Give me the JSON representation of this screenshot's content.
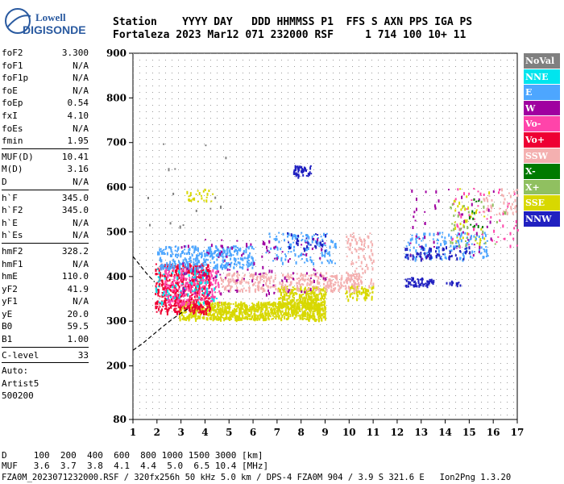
{
  "logo": {
    "line1": "Lowell",
    "line2": "DIGISONDE"
  },
  "header": {
    "line1": "Station    YYYY DAY   DDD HHMMSS P1  FFS S AXN PPS IGA PS",
    "line2": "Fortaleza 2023 Mar12 071 232000 RSF     1 714 100 10+ 11"
  },
  "params": {
    "group1": [
      {
        "k": "foF2",
        "v": "3.300"
      },
      {
        "k": "foF1",
        "v": "N/A"
      },
      {
        "k": "foF1p",
        "v": "N/A"
      },
      {
        "k": "foE",
        "v": "N/A"
      },
      {
        "k": "foEp",
        "v": "0.54"
      },
      {
        "k": "fxI",
        "v": "4.10"
      },
      {
        "k": "foEs",
        "v": "N/A"
      },
      {
        "k": "fmin",
        "v": "1.95"
      }
    ],
    "group2": [
      {
        "k": "MUF(D)",
        "v": "10.41"
      },
      {
        "k": "M(D)",
        "v": "3.16"
      },
      {
        "k": "D",
        "v": "N/A"
      }
    ],
    "group3": [
      {
        "k": "h`F",
        "v": "345.0"
      },
      {
        "k": "h`F2",
        "v": "345.0"
      },
      {
        "k": "h`E",
        "v": "N/A"
      },
      {
        "k": "h`Es",
        "v": "N/A"
      }
    ],
    "group4": [
      {
        "k": "hmF2",
        "v": "328.2"
      },
      {
        "k": "hmF1",
        "v": "N/A"
      },
      {
        "k": "hmE",
        "v": "110.0"
      },
      {
        "k": "yF2",
        "v": "41.9"
      },
      {
        "k": "yF1",
        "v": "N/A"
      },
      {
        "k": "yE",
        "v": "20.0"
      },
      {
        "k": "B0",
        "v": "59.5"
      },
      {
        "k": "B1",
        "v": "1.00"
      }
    ],
    "group5": [
      {
        "k": "C-level",
        "v": "33"
      }
    ],
    "auto": {
      "line1": "Auto:",
      "line2": "Artist5",
      "line3": "500200"
    }
  },
  "legend": [
    {
      "label": "NoVal",
      "color": "#808080"
    },
    {
      "label": "NNE",
      "color": "#00e5ee"
    },
    {
      "label": "E",
      "color": "#4da6ff"
    },
    {
      "label": "W",
      "color": "#a000a0"
    },
    {
      "label": "Vo-",
      "color": "#ff44aa"
    },
    {
      "label": "Vo+",
      "color": "#ee0033"
    },
    {
      "label": "SSW",
      "color": "#f4b0b0"
    },
    {
      "label": "X-",
      "color": "#007a00"
    },
    {
      "label": "X+",
      "color": "#90c060"
    },
    {
      "label": "SSE",
      "color": "#d8d800"
    },
    {
      "label": "NNW",
      "color": "#2020c0"
    }
  ],
  "footer": {
    "d_line": "D     100  200  400  600  800 1000 1500 3000 [km]",
    "muf_line": "MUF   3.6  3.7  3.8  4.1  4.4  5.0  6.5 10.4 [MHz]",
    "info_line": "FZA0M_2023071232000.RSF / 320fx256h 50 kHz 5.0 km / DPS-4 FZA0M 904 / 3.9 S 321.6 E   Ion2Png 1.3.20"
  },
  "chart_data": {
    "type": "scatter",
    "xlim": [
      1,
      17
    ],
    "ylim": [
      80,
      900
    ],
    "x_ticks": [
      1,
      2,
      3,
      4,
      5,
      6,
      7,
      8,
      9,
      10,
      11,
      12,
      13,
      14,
      15,
      16,
      17
    ],
    "y_ticks": [
      80,
      200,
      300,
      400,
      500,
      600,
      700,
      800,
      900
    ],
    "grid": true,
    "clusters": [
      {
        "series": "SSE",
        "xmin": 2.9,
        "xmax": 9.0,
        "ymin": 305,
        "ymax": 345,
        "density": 900
      },
      {
        "series": "SSE",
        "xmin": 7.0,
        "xmax": 9.0,
        "ymin": 330,
        "ymax": 380,
        "density": 300
      },
      {
        "series": "SSE",
        "xmin": 9.8,
        "xmax": 11.0,
        "ymin": 350,
        "ymax": 380,
        "density": 60
      },
      {
        "series": "SSE",
        "xmin": 3.2,
        "xmax": 4.3,
        "ymin": 570,
        "ymax": 600,
        "density": 25
      },
      {
        "series": "SSE",
        "xmin": 14.2,
        "xmax": 15.8,
        "ymin": 470,
        "ymax": 600,
        "density": 40
      },
      {
        "series": "Vo+",
        "xmin": 1.9,
        "xmax": 4.2,
        "ymin": 320,
        "ymax": 430,
        "density": 550
      },
      {
        "series": "Vo-",
        "xmin": 2.3,
        "xmax": 4.6,
        "ymin": 340,
        "ymax": 420,
        "density": 200
      },
      {
        "series": "Vo-",
        "xmin": 14.0,
        "xmax": 17.0,
        "ymin": 460,
        "ymax": 600,
        "density": 60
      },
      {
        "series": "SSW",
        "xmin": 4.6,
        "xmax": 10.5,
        "ymin": 370,
        "ymax": 410,
        "density": 350
      },
      {
        "series": "SSW",
        "xmin": 9.8,
        "xmax": 11.0,
        "ymin": 380,
        "ymax": 500,
        "density": 90
      },
      {
        "series": "SSW",
        "xmin": 15.5,
        "xmax": 17.0,
        "ymin": 540,
        "ymax": 600,
        "density": 40
      },
      {
        "series": "E",
        "xmin": 2.0,
        "xmax": 6.0,
        "ymin": 420,
        "ymax": 470,
        "density": 350
      },
      {
        "series": "E",
        "xmin": 6.5,
        "xmax": 9.5,
        "ymin": 430,
        "ymax": 500,
        "density": 120
      },
      {
        "series": "E",
        "xmin": 12.2,
        "xmax": 15.8,
        "ymin": 440,
        "ymax": 500,
        "density": 140
      },
      {
        "series": "NNE",
        "xmin": 1.9,
        "xmax": 4.5,
        "ymin": 340,
        "ymax": 420,
        "density": 80
      },
      {
        "series": "W",
        "xmin": 3.0,
        "xmax": 9.0,
        "ymin": 360,
        "ymax": 490,
        "density": 120
      },
      {
        "series": "W",
        "xmin": 12.5,
        "xmax": 16.0,
        "ymin": 440,
        "ymax": 600,
        "density": 50
      },
      {
        "series": "NNW",
        "xmin": 7.6,
        "xmax": 8.4,
        "ymin": 625,
        "ymax": 650,
        "density": 45
      },
      {
        "series": "NNW",
        "xmin": 12.3,
        "xmax": 13.6,
        "ymin": 380,
        "ymax": 400,
        "density": 60
      },
      {
        "series": "NNW",
        "xmin": 14.0,
        "xmax": 14.6,
        "ymin": 382,
        "ymax": 392,
        "density": 12
      },
      {
        "series": "NNW",
        "xmin": 12.3,
        "xmax": 15.0,
        "ymin": 440,
        "ymax": 470,
        "density": 70
      },
      {
        "series": "NNW",
        "xmin": 7.4,
        "xmax": 9.0,
        "ymin": 460,
        "ymax": 500,
        "density": 30
      },
      {
        "series": "X-",
        "xmin": 14.8,
        "xmax": 15.6,
        "ymin": 510,
        "ymax": 580,
        "density": 12
      },
      {
        "series": "X+",
        "xmin": 14.0,
        "xmax": 16.5,
        "ymin": 470,
        "ymax": 570,
        "density": 30
      },
      {
        "series": "NoVal",
        "xmin": 1.5,
        "xmax": 5.0,
        "ymin": 500,
        "ymax": 700,
        "density": 15
      }
    ],
    "profile_curve": {
      "x": [
        1.0,
        1.4,
        1.8,
        2.2,
        2.6,
        3.0,
        3.3
      ],
      "y": [
        235,
        250,
        268,
        286,
        303,
        318,
        328
      ]
    },
    "profile_curve_upper": {
      "x": [
        1.0,
        1.3,
        1.6,
        1.9
      ],
      "y": [
        445,
        425,
        405,
        388
      ]
    }
  }
}
